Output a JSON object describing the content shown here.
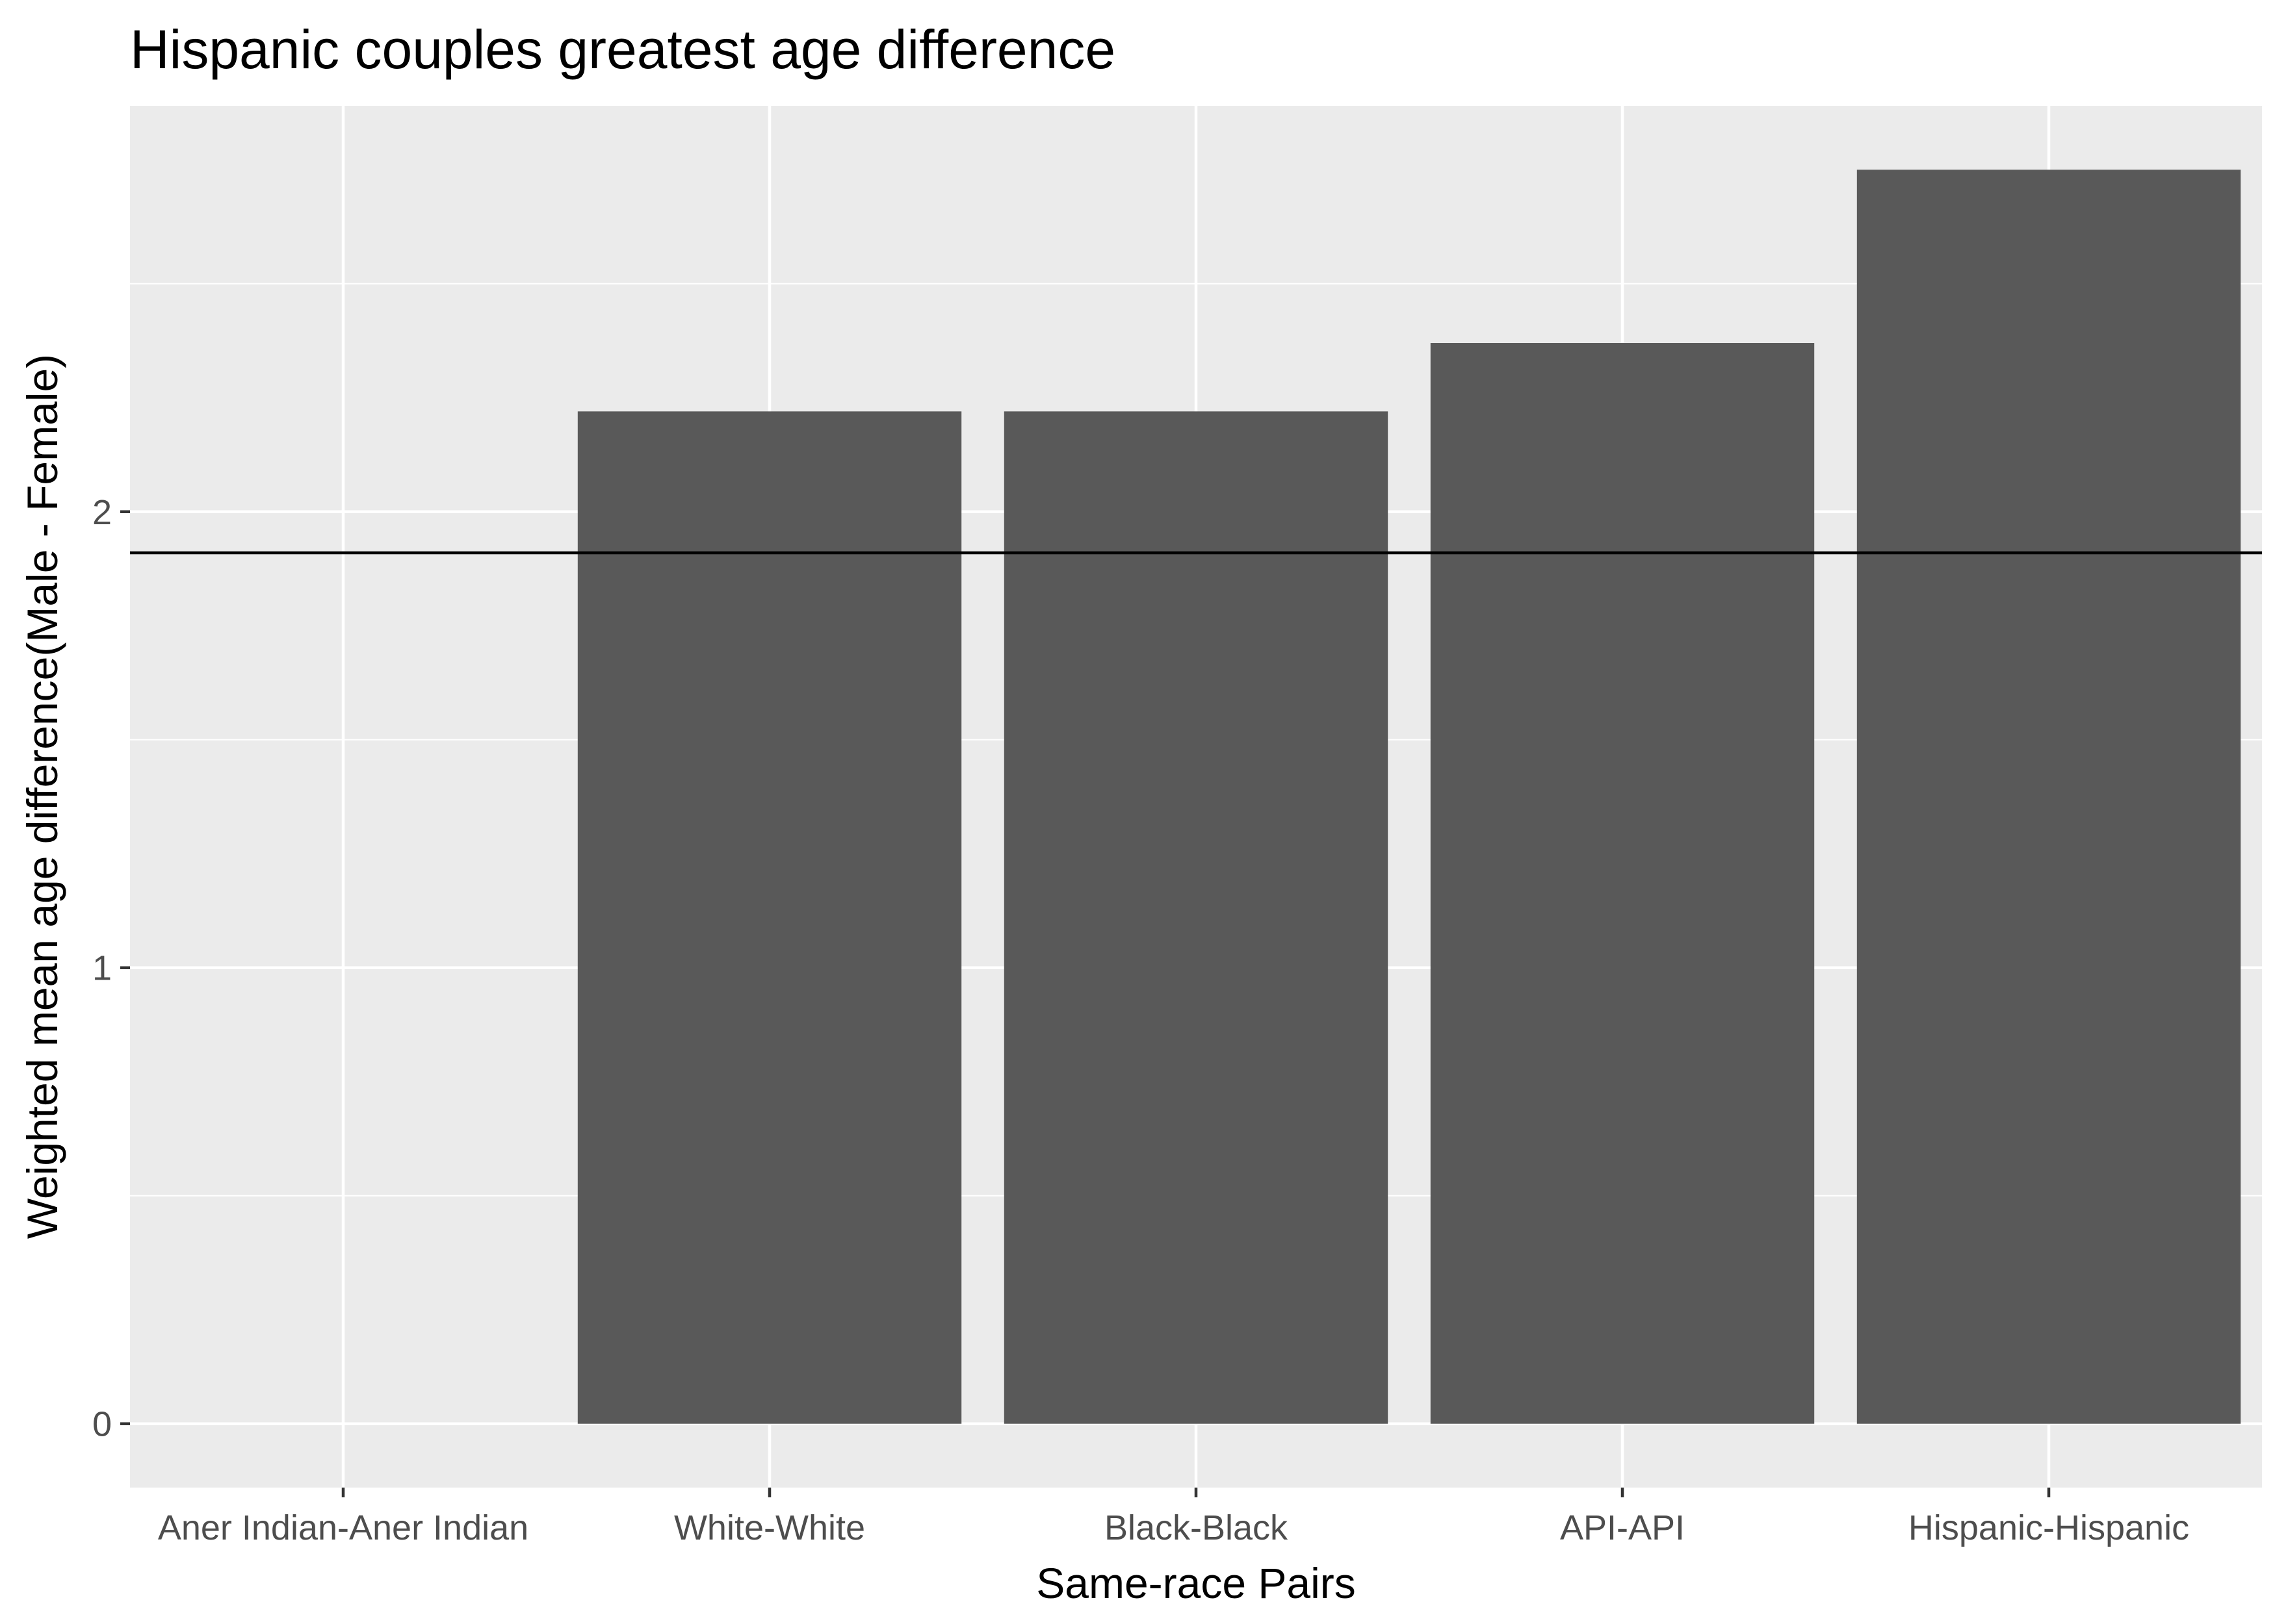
{
  "chart_data": {
    "type": "bar",
    "title": "Hispanic couples greatest age difference",
    "xlabel": "Same-race Pairs",
    "ylabel": "Weighted mean age difference(Male - Female)",
    "categories": [
      "Aner Indian-Aner Indian",
      "White-White",
      "Black-Black",
      "API-API",
      "Hispanic-Hispanic"
    ],
    "values": [
      0,
      2.22,
      2.22,
      2.37,
      2.75
    ],
    "yticks": [
      0,
      1,
      2
    ],
    "ytick_labels": [
      "0",
      "1",
      "2"
    ],
    "ylim": [
      -0.14,
      2.89
    ],
    "reference_line": 1.91,
    "grid": true,
    "legend": "none",
    "colors": {
      "panel": "#ebebeb",
      "grid": "#ffffff",
      "bar": "#595959",
      "reference_line": "#000000",
      "tick_text": "#4d4d4d"
    }
  }
}
